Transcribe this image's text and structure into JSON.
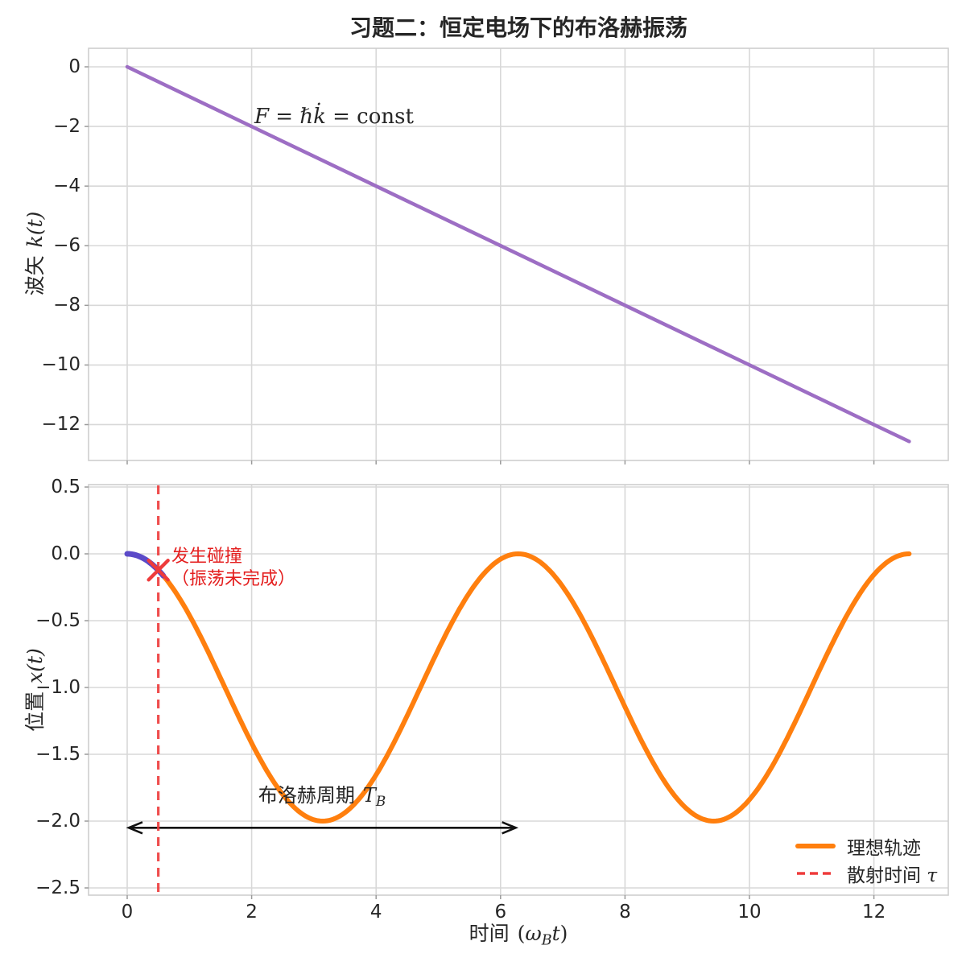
{
  "title": "习题二：恒定电场下的布洛赫振荡",
  "colors": {
    "wavevector_line": "#9d6ec4",
    "ideal_trajectory": "#ff7f0e",
    "actual_segment": "#5b4ac8",
    "red": "#ee3b3b",
    "red_text": "#e41f1f",
    "grid": "#d8d8d8",
    "spine": "#cfcfcf",
    "tick_mark": "#9a9a9a",
    "text": "#262626",
    "arrow": "#111111"
  },
  "top_plot": {
    "ylabel_cjk": "波矢",
    "ylabel_math": "k(t)",
    "annotation_italic": "F = ℏk̇",
    "annotation_roman": " = const"
  },
  "bottom_plot": {
    "ylabel_cjk": "位置",
    "ylabel_math": "x(t)",
    "xlabel_cjk": "时间",
    "xlabel_open": "(",
    "xlabel_omega": "ω",
    "xlabel_sub": "B",
    "xlabel_t": "t",
    "xlabel_close": ")",
    "collision_line1": "发生碰撞",
    "collision_line2": "（振荡未完成）",
    "bloch_cjk": "布洛赫周期",
    "bloch_math": "T",
    "bloch_sub": "B",
    "legend": [
      {
        "label": "理想轨迹",
        "math": ""
      },
      {
        "label": "散射时间",
        "math": "τ"
      }
    ]
  },
  "chart_data": [
    {
      "id": "top-wavevector",
      "type": "line",
      "ylabel": "波矢 k(t)",
      "annotation": "F = ℏk̇ = const",
      "xlim": [
        -0.62,
        13.19
      ],
      "ylim": [
        -13.2,
        0.7
      ],
      "xticks": [
        0,
        2,
        4,
        6,
        8,
        10,
        12
      ],
      "yticks": [
        0,
        -2,
        -4,
        -6,
        -8,
        -10,
        -12
      ],
      "ytick_labels": [
        "0",
        "−2",
        "−4",
        "−6",
        "−8",
        "−10",
        "−12"
      ],
      "grid": true,
      "series": [
        {
          "id": "wavevector-line",
          "formula": "k(t) = −t",
          "x": [
            0,
            2,
            4,
            6,
            8,
            10,
            12,
            12.566
          ],
          "y": [
            0,
            -2,
            -4,
            -6,
            -8,
            -10,
            -12,
            -12.566
          ]
        }
      ]
    },
    {
      "id": "bottom-position",
      "type": "line",
      "xlabel": "时间 (ω_B t)",
      "ylabel": "位置 x(t)",
      "xlim": [
        -0.62,
        13.19
      ],
      "ylim": [
        -2.55,
        0.52
      ],
      "xticks": [
        0,
        2,
        4,
        6,
        8,
        10,
        12
      ],
      "xtick_labels": [
        "0",
        "2",
        "4",
        "6",
        "8",
        "10",
        "12"
      ],
      "yticks": [
        0.5,
        0,
        -0.5,
        -1,
        -1.5,
        -2,
        -2.5
      ],
      "ytick_labels": [
        "0.5",
        "0.0",
        "−0.5",
        "−1.0",
        "−1.5",
        "−2.0",
        "−2.5"
      ],
      "grid": true,
      "legend_position": "lower right",
      "series": [
        {
          "id": "ideal-trajectory",
          "name": "理想轨迹",
          "formula": "x(t) = cos(t) − 1",
          "t_range": [
            0,
            12.566
          ],
          "key_points": [
            [
              0,
              0
            ],
            [
              3.142,
              -2
            ],
            [
              6.283,
              0
            ],
            [
              9.425,
              -2
            ],
            [
              12.566,
              0
            ]
          ]
        },
        {
          "id": "actual-trajectory-before-collision",
          "formula": "x(t) = cos(t) − 1",
          "t_range": [
            0,
            0.58
          ]
        }
      ],
      "scattering_time_tau": 0.5,
      "collision_point": [
        0.5,
        -0.122
      ],
      "collision_annotation": "发生碰撞（振荡未完成）",
      "bloch_period_arrow": {
        "t_from": 0,
        "t_to": 6.283,
        "y": -2.05,
        "label": "布洛赫周期 T_B"
      }
    }
  ]
}
